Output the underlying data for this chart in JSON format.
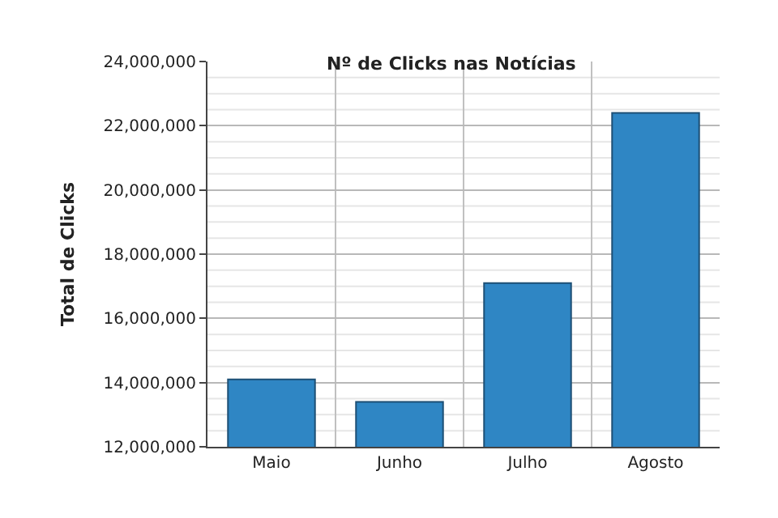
{
  "chart_data": {
    "type": "bar",
    "title": "Nº de Clicks nas Notícias",
    "ylabel": "Total de Clicks",
    "categories": [
      "Maio",
      "Junho",
      "Julho",
      "Agosto"
    ],
    "values": [
      14100000,
      13400000,
      17100000,
      22400000
    ],
    "color": "#2f86c4",
    "ylim": [
      12000000,
      24000000
    ],
    "yticks": [
      {
        "value": 12000000,
        "label": "12,000,000"
      },
      {
        "value": 14000000,
        "label": "14,000,000"
      },
      {
        "value": 16000000,
        "label": "16,000,000"
      },
      {
        "value": 18000000,
        "label": "18,000,000"
      },
      {
        "value": 20000000,
        "label": "20,000,000"
      },
      {
        "value": 22000000,
        "label": "22,000,000"
      },
      {
        "value": 24000000,
        "label": "24,000,000"
      }
    ],
    "grid": true
  }
}
